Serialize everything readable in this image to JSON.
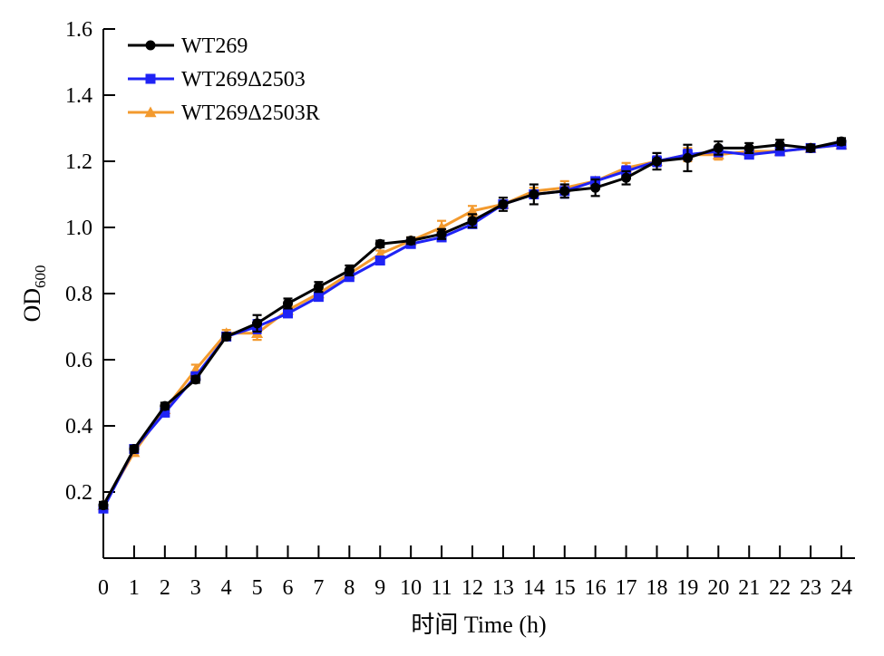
{
  "chart_data": {
    "type": "line",
    "xlabel": "时间 Time (h)",
    "ylabel": "OD",
    "ylabel_sub": "600",
    "xlim": [
      0,
      24
    ],
    "ylim": [
      0.0,
      1.6
    ],
    "x_ticks": [
      0,
      1,
      2,
      3,
      4,
      5,
      6,
      7,
      8,
      9,
      10,
      11,
      12,
      13,
      14,
      15,
      16,
      17,
      18,
      19,
      20,
      21,
      22,
      23,
      24
    ],
    "y_ticks": [
      0.2,
      0.4,
      0.6,
      0.8,
      1.0,
      1.2,
      1.4,
      1.6
    ],
    "y_tick_labels": [
      "0.2",
      "0.4",
      "0.6",
      "0.8",
      "1.0",
      "1.2",
      "1.4",
      "1.6"
    ],
    "legend_position": "top-left",
    "grid": false,
    "x": [
      0,
      1,
      2,
      3,
      4,
      5,
      6,
      7,
      8,
      9,
      10,
      11,
      12,
      13,
      14,
      15,
      16,
      17,
      18,
      19,
      20,
      21,
      22,
      23,
      24
    ],
    "series": [
      {
        "name": "WT269Δ2503R",
        "color": "#f39a2e",
        "marker": "triangle",
        "values": [
          0.16,
          0.32,
          0.45,
          0.57,
          0.68,
          0.68,
          0.75,
          0.8,
          0.86,
          0.92,
          0.96,
          1.0,
          1.05,
          1.07,
          1.11,
          1.12,
          1.14,
          1.18,
          1.2,
          1.22,
          1.22,
          1.23,
          1.23,
          1.24,
          1.25
        ],
        "errors": [
          0.01,
          0.01,
          0.01,
          0.015,
          0.01,
          0.02,
          0.01,
          0.01,
          0.01,
          0.01,
          0.01,
          0.02,
          0.015,
          0.01,
          0.01,
          0.02,
          0.01,
          0.015,
          0.015,
          0.02,
          0.015,
          0.01,
          0.01,
          0.01,
          0.01
        ]
      },
      {
        "name": "WT269Δ2503",
        "color": "#1f23f5",
        "marker": "square",
        "values": [
          0.15,
          0.33,
          0.44,
          0.55,
          0.67,
          0.7,
          0.74,
          0.79,
          0.85,
          0.9,
          0.95,
          0.97,
          1.01,
          1.07,
          1.1,
          1.11,
          1.14,
          1.17,
          1.2,
          1.22,
          1.23,
          1.22,
          1.23,
          1.24,
          1.25
        ],
        "errors": [
          0.01,
          0.01,
          0.01,
          0.01,
          0.01,
          0.02,
          0.01,
          0.01,
          0.01,
          0.01,
          0.01,
          0.01,
          0.01,
          0.01,
          0.01,
          0.02,
          0.01,
          0.015,
          0.015,
          0.015,
          0.015,
          0.01,
          0.01,
          0.01,
          0.01
        ]
      },
      {
        "name": "WT269",
        "color": "#000000",
        "marker": "circle",
        "values": [
          0.16,
          0.33,
          0.46,
          0.54,
          0.67,
          0.71,
          0.77,
          0.82,
          0.87,
          0.95,
          0.96,
          0.98,
          1.02,
          1.07,
          1.1,
          1.11,
          1.12,
          1.15,
          1.2,
          1.21,
          1.24,
          1.24,
          1.25,
          1.24,
          1.26
        ],
        "errors": [
          0.01,
          0.01,
          0.01,
          0.01,
          0.01,
          0.025,
          0.015,
          0.015,
          0.015,
          0.01,
          0.01,
          0.015,
          0.02,
          0.02,
          0.03,
          0.02,
          0.025,
          0.02,
          0.025,
          0.04,
          0.02,
          0.015,
          0.015,
          0.01,
          0.01
        ]
      }
    ],
    "legend_order": [
      "WT269",
      "WT269Δ2503",
      "WT269Δ2503R"
    ]
  }
}
